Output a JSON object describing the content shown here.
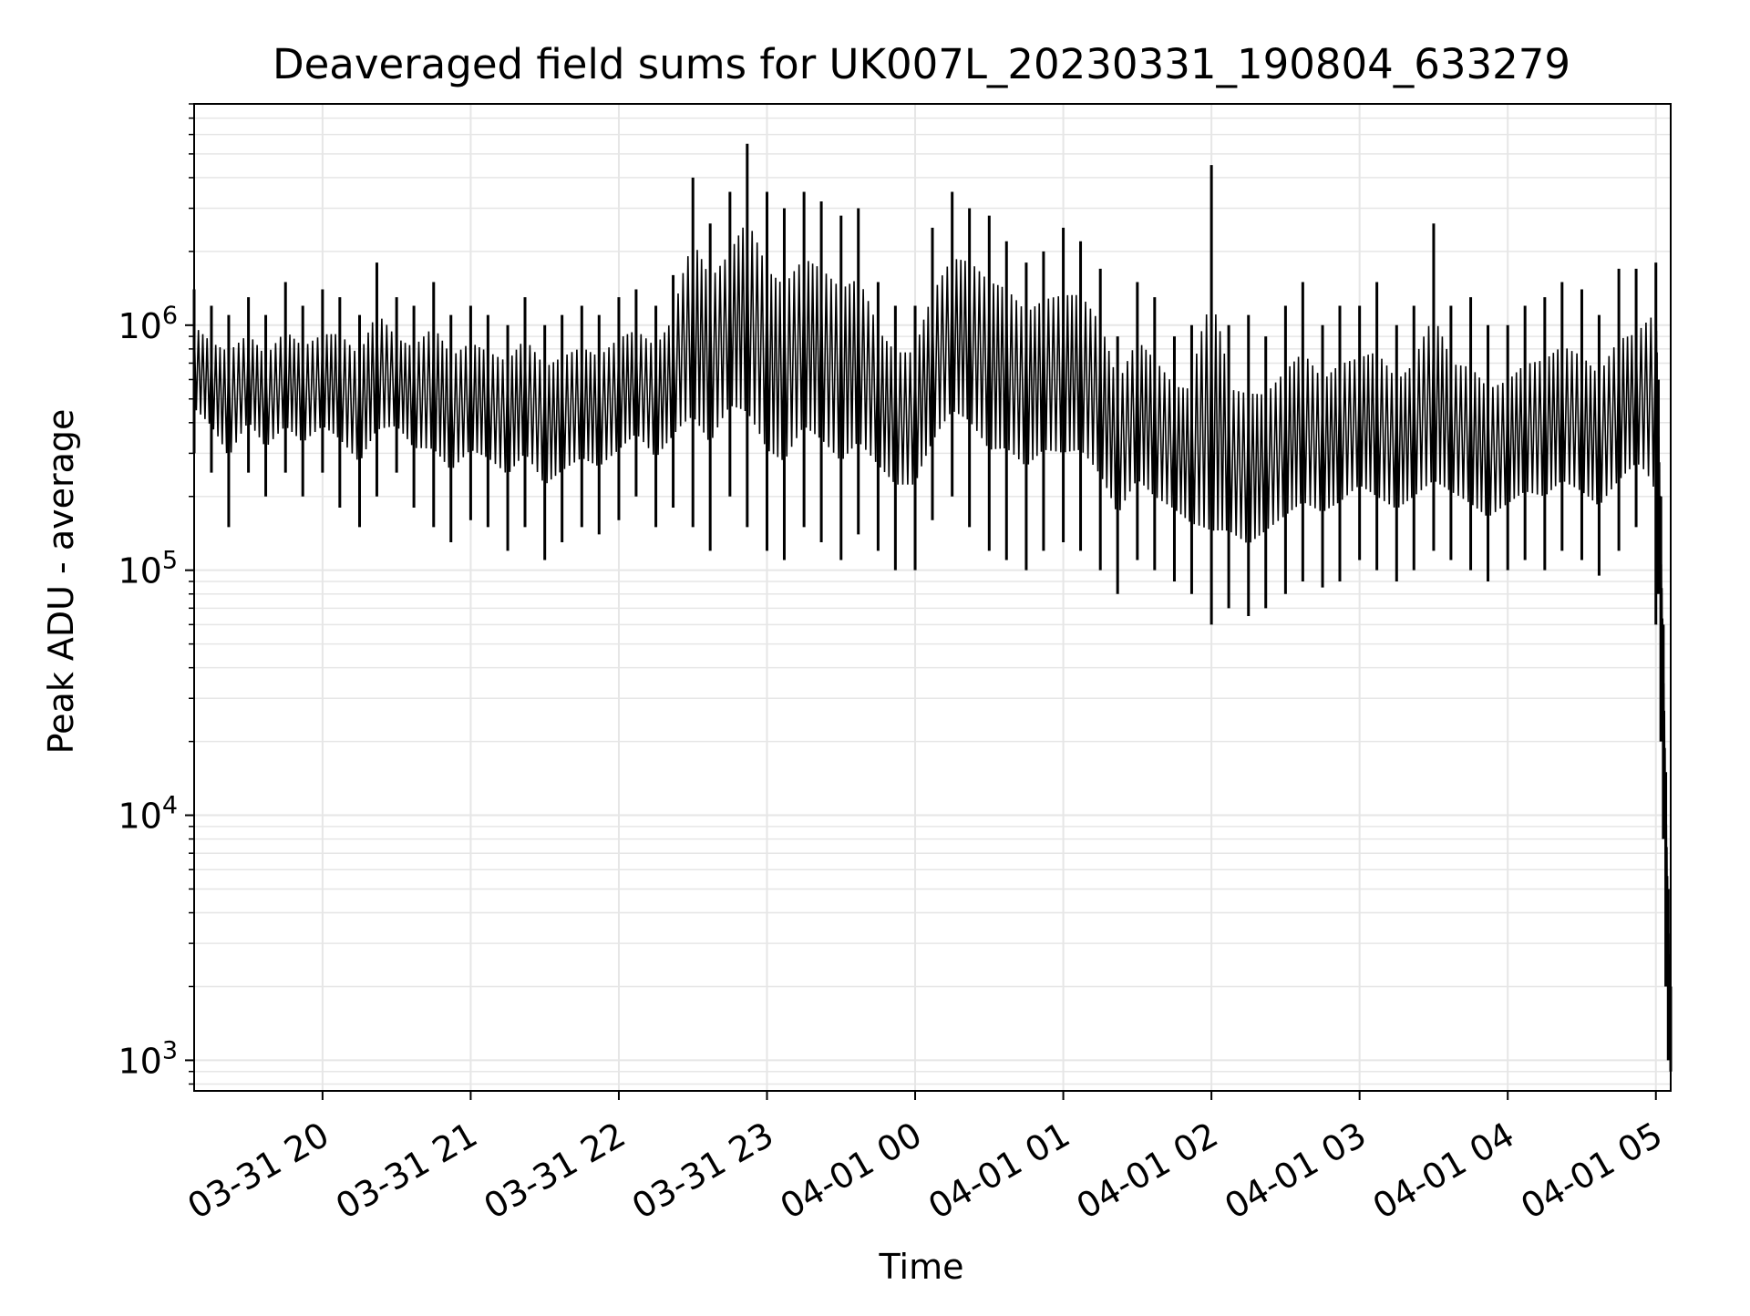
{
  "chart_data": {
    "type": "line",
    "title": "Deaveraged field sums for UK007L_20230331_190804_633279",
    "xlabel": "Time",
    "ylabel": "Peak ADU - average",
    "yscale": "log",
    "xlim": [
      "2023-03-31 19:08",
      "2023-04-01 05:06"
    ],
    "ylim": [
      750,
      8000000
    ],
    "grid": true,
    "x_ticks": [
      {
        "value": "2023-03-31 20:00",
        "label": "03-31 20"
      },
      {
        "value": "2023-03-31 21:00",
        "label": "03-31 21"
      },
      {
        "value": "2023-03-31 22:00",
        "label": "03-31 22"
      },
      {
        "value": "2023-03-31 23:00",
        "label": "03-31 23"
      },
      {
        "value": "2023-04-01 00:00",
        "label": "04-01 00"
      },
      {
        "value": "2023-04-01 01:00",
        "label": "04-01 01"
      },
      {
        "value": "2023-04-01 02:00",
        "label": "04-01 02"
      },
      {
        "value": "2023-04-01 03:00",
        "label": "04-01 03"
      },
      {
        "value": "2023-04-01 04:00",
        "label": "04-01 04"
      },
      {
        "value": "2023-04-01 05:00",
        "label": "04-01 05"
      }
    ],
    "y_ticks": [
      {
        "value": 1000,
        "base": "10",
        "exp": "3"
      },
      {
        "value": 10000,
        "base": "10",
        "exp": "4"
      },
      {
        "value": 100000,
        "base": "10",
        "exp": "5"
      },
      {
        "value": 1000000,
        "base": "10",
        "exp": "6"
      }
    ],
    "series": [
      {
        "color": "#000000",
        "x": [
          "2023-03-31 19:08",
          "2023-03-31 19:15",
          "2023-03-31 19:22",
          "2023-03-31 19:30",
          "2023-03-31 19:37",
          "2023-03-31 19:45",
          "2023-03-31 19:52",
          "2023-03-31 20:00",
          "2023-03-31 20:07",
          "2023-03-31 20:15",
          "2023-03-31 20:22",
          "2023-03-31 20:30",
          "2023-03-31 20:37",
          "2023-03-31 20:45",
          "2023-03-31 20:52",
          "2023-03-31 21:00",
          "2023-03-31 21:07",
          "2023-03-31 21:15",
          "2023-03-31 21:22",
          "2023-03-31 21:30",
          "2023-03-31 21:37",
          "2023-03-31 21:45",
          "2023-03-31 21:52",
          "2023-03-31 22:00",
          "2023-03-31 22:07",
          "2023-03-31 22:15",
          "2023-03-31 22:22",
          "2023-03-31 22:30",
          "2023-03-31 22:37",
          "2023-03-31 22:45",
          "2023-03-31 22:52",
          "2023-03-31 23:00",
          "2023-03-31 23:07",
          "2023-03-31 23:15",
          "2023-03-31 23:22",
          "2023-03-31 23:30",
          "2023-03-31 23:37",
          "2023-03-31 23:45",
          "2023-03-31 23:52",
          "2023-04-01 00:00",
          "2023-04-01 00:07",
          "2023-04-01 00:15",
          "2023-04-01 00:22",
          "2023-04-01 00:30",
          "2023-04-01 00:37",
          "2023-04-01 00:45",
          "2023-04-01 00:52",
          "2023-04-01 01:00",
          "2023-04-01 01:07",
          "2023-04-01 01:15",
          "2023-04-01 01:22",
          "2023-04-01 01:30",
          "2023-04-01 01:37",
          "2023-04-01 01:45",
          "2023-04-01 01:52",
          "2023-04-01 02:00",
          "2023-04-01 02:07",
          "2023-04-01 02:15",
          "2023-04-01 02:22",
          "2023-04-01 02:30",
          "2023-04-01 02:37",
          "2023-04-01 02:45",
          "2023-04-01 02:52",
          "2023-04-01 03:00",
          "2023-04-01 03:07",
          "2023-04-01 03:15",
          "2023-04-01 03:22",
          "2023-04-01 03:30",
          "2023-04-01 03:37",
          "2023-04-01 03:45",
          "2023-04-01 03:52",
          "2023-04-01 04:00",
          "2023-04-01 04:07",
          "2023-04-01 04:15",
          "2023-04-01 04:22",
          "2023-04-01 04:30",
          "2023-04-01 04:37",
          "2023-04-01 04:45",
          "2023-04-01 04:52",
          "2023-04-01 05:00",
          "2023-04-01 05:01",
          "2023-04-01 05:02",
          "2023-04-01 05:03",
          "2023-04-01 05:04",
          "2023-04-01 05:05",
          "2023-04-01 05:06"
        ],
        "y": [
          700000,
          600000,
          550000,
          650000,
          500000,
          600000,
          550000,
          600000,
          650000,
          500000,
          700000,
          600000,
          550000,
          650000,
          500000,
          600000,
          550000,
          500000,
          600000,
          450000,
          500000,
          550000,
          500000,
          600000,
          650000,
          550000,
          700000,
          1200000,
          900000,
          1100000,
          1300000,
          800000,
          700000,
          1000000,
          900000,
          700000,
          800000,
          600000,
          500000,
          500000,
          700000,
          1000000,
          1100000,
          800000,
          900000,
          700000,
          800000,
          700000,
          800000,
          600000,
          350000,
          500000,
          400000,
          350000,
          300000,
          350000,
          300000,
          250000,
          300000,
          350000,
          400000,
          350000,
          400000,
          450000,
          400000,
          350000,
          400000,
          450000,
          400000,
          350000,
          300000,
          350000,
          400000,
          400000,
          450000,
          400000,
          350000,
          450000,
          500000,
          700000,
          300000,
          80000,
          30000,
          8000,
          3000,
          1200
        ],
        "y_high": [
          1400000,
          1200000,
          1100000,
          1300000,
          1100000,
          1500000,
          1200000,
          1400000,
          1300000,
          1100000,
          1800000,
          1300000,
          1200000,
          1500000,
          1100000,
          1200000,
          1100000,
          1000000,
          1300000,
          1000000,
          1100000,
          1200000,
          1100000,
          1300000,
          1400000,
          1200000,
          1600000,
          4000000,
          2600000,
          3500000,
          5500000,
          3500000,
          3000000,
          3500000,
          3200000,
          2800000,
          3000000,
          1500000,
          1200000,
          1200000,
          2500000,
          3500000,
          3000000,
          2800000,
          2200000,
          1800000,
          2000000,
          2500000,
          2200000,
          1700000,
          900000,
          1500000,
          1300000,
          900000,
          1000000,
          4500000,
          1000000,
          1100000,
          900000,
          1200000,
          1500000,
          1000000,
          1200000,
          1200000,
          1500000,
          1000000,
          1200000,
          2600000,
          1200000,
          1300000,
          1000000,
          1000000,
          1200000,
          1300000,
          1500000,
          1400000,
          1100000,
          1700000,
          1700000,
          1800000,
          600000,
          200000,
          60000,
          15000,
          5000,
          2000
        ],
        "y_low": [
          300000,
          250000,
          150000,
          250000,
          200000,
          250000,
          200000,
          250000,
          180000,
          150000,
          200000,
          250000,
          180000,
          150000,
          130000,
          160000,
          150000,
          120000,
          150000,
          110000,
          130000,
          150000,
          140000,
          160000,
          200000,
          150000,
          180000,
          150000,
          120000,
          200000,
          150000,
          120000,
          110000,
          150000,
          130000,
          110000,
          140000,
          120000,
          100000,
          100000,
          160000,
          200000,
          150000,
          120000,
          110000,
          100000,
          120000,
          130000,
          120000,
          100000,
          80000,
          110000,
          100000,
          90000,
          80000,
          60000,
          70000,
          65000,
          70000,
          80000,
          90000,
          85000,
          90000,
          110000,
          100000,
          90000,
          100000,
          120000,
          110000,
          100000,
          90000,
          100000,
          110000,
          100000,
          120000,
          110000,
          95000,
          120000,
          150000,
          60000,
          80000,
          20000,
          8000,
          2000,
          1000,
          900
        ]
      }
    ]
  }
}
